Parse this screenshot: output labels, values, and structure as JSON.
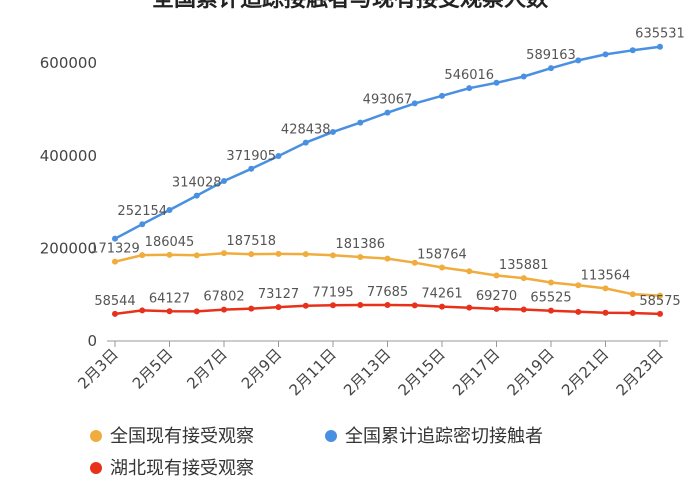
{
  "chart_data": {
    "type": "line",
    "title": "全国累计追踪接触者与现有接受观察人数",
    "xlabel": "",
    "ylabel": "",
    "ylim": [
      0,
      650000
    ],
    "yticks": [
      0,
      200000,
      400000,
      600000
    ],
    "ytick_labels": [
      "0",
      "200000",
      "400000",
      "600000"
    ],
    "x": [
      "2月3日",
      "2月4日",
      "2月5日",
      "2月6日",
      "2月7日",
      "2月8日",
      "2月9日",
      "2月10日",
      "2月11日",
      "2月12日",
      "2月13日",
      "2月14日",
      "2月15日",
      "2月16日",
      "2月17日",
      "2月18日",
      "2月19日",
      "2月20日",
      "2月21日",
      "2月22日",
      "2月23日"
    ],
    "xtick_labels": [
      "2月3日",
      "2月5日",
      "2月7日",
      "2月9日",
      "2月11日",
      "2月13日",
      "2月15日",
      "2月17日",
      "2月19日",
      "2月21日",
      "2月23日"
    ],
    "grid": false,
    "legend_position": "bottom",
    "series": [
      {
        "name": "全国现有接受观察",
        "color": "#f0ad3e",
        "values": [
          171329,
          185555,
          186045,
          185037,
          189660,
          187518,
          188183,
          187728,
          185037,
          181386,
          177984,
          169039,
          158764,
          150539,
          141552,
          135881,
          126363,
          120302,
          113564,
          101000,
          98000
        ],
        "labels": {
          "0": "171329",
          "2": "186045",
          "5": "187518",
          "9": "181386",
          "12": "158764",
          "15": "135881",
          "18": "113564"
        }
      },
      {
        "name": "全国累计追踪密切接触者",
        "color": "#4a90e2",
        "values": [
          221015,
          252154,
          282813,
          314028,
          345498,
          371905,
          399487,
          428438,
          451462,
          471531,
          493067,
          513183,
          529418,
          546016,
          557605,
          571089,
          589163,
          606037,
          618915,
          627847,
          635531
        ],
        "labels": {
          "1": "252154",
          "3": "314028",
          "5": "371905",
          "7": "428438",
          "10": "493067",
          "13": "546016",
          "16": "589163",
          "20": "635531"
        }
      },
      {
        "name": "湖北现有接受观察",
        "color": "#e8311a",
        "values": [
          58544,
          66000,
          64127,
          64000,
          67802,
          70000,
          73127,
          76000,
          77195,
          77800,
          77685,
          77000,
          74261,
          72000,
          69270,
          68000,
          65525,
          63000,
          61000,
          60500,
          58575
        ],
        "labels": {
          "0": "58544",
          "2": "64127",
          "4": "67802",
          "6": "73127",
          "8": "77195",
          "10": "77685",
          "12": "74261",
          "14": "69270",
          "16": "65525",
          "20": "58575"
        }
      }
    ]
  }
}
